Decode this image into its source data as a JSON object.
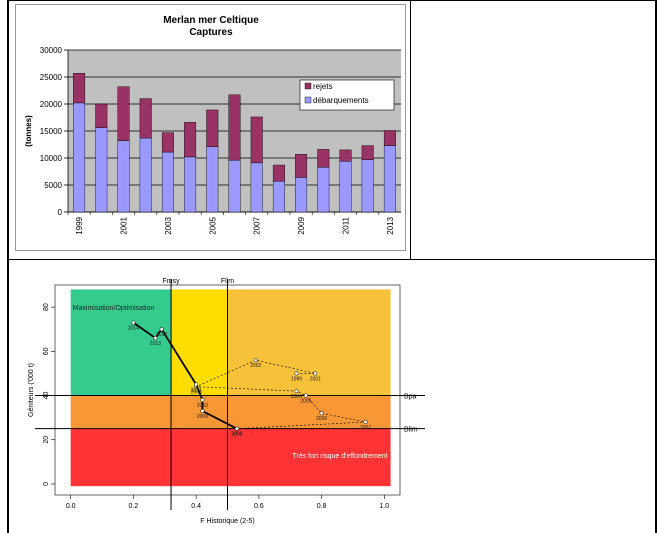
{
  "chart_data": [
    {
      "type": "bar",
      "stacked": true,
      "title": "Merlan mer Celtique",
      "subtitle": "Captures",
      "ylabel": "(tonnes)",
      "xlabel": "",
      "ylim": [
        0,
        30000
      ],
      "yticks": [
        0,
        5000,
        10000,
        15000,
        20000,
        25000,
        30000
      ],
      "grid": true,
      "legend_position": "right",
      "categories": [
        "1999",
        "2000",
        "2001",
        "2002",
        "2003",
        "2004",
        "2005",
        "2006",
        "2007",
        "2008",
        "2009",
        "2010",
        "2011",
        "2012",
        "2013"
      ],
      "tick_labels": [
        "1999",
        "",
        "2001",
        "",
        "2003",
        "",
        "2005",
        "",
        "2007",
        "",
        "2009",
        "",
        "2011",
        "",
        "2013"
      ],
      "series": [
        {
          "name": "débarquements",
          "color": "#9999ff",
          "values": [
            20200,
            15600,
            13200,
            13700,
            11100,
            10200,
            12100,
            9600,
            9100,
            5700,
            6400,
            8300,
            9400,
            9700,
            12300
          ]
        },
        {
          "name": "rejets",
          "color": "#993366",
          "values": [
            5500,
            4400,
            10000,
            7300,
            3600,
            6400,
            6800,
            12100,
            8500,
            3000,
            4300,
            3300,
            2100,
            2600,
            2800
          ]
        }
      ]
    },
    {
      "type": "scatter",
      "xlabel": "F Historique (2-5)",
      "ylabel": "Géniteurs ('000 t)",
      "xlim": [
        -0.05,
        1.05
      ],
      "ylim": [
        -5,
        90
      ],
      "xticks": [
        0.0,
        0.2,
        0.4,
        0.6,
        0.8,
        1.0
      ],
      "xtick_labels": [
        "0.0",
        "0.2",
        "0.4",
        "0.6",
        "0.8",
        "1.0"
      ],
      "yticks": [
        0,
        20,
        40,
        60,
        80
      ],
      "zones": [
        {
          "label": "Maximisation/Optimisation",
          "color": "#33cc8c"
        },
        {
          "label": "",
          "color": "#ffdd00"
        },
        {
          "label": "",
          "color": "#f8c13a"
        },
        {
          "label": "",
          "color": "#f99636"
        },
        {
          "label": "Très fort risque d'effondrement",
          "color": "#ff3333"
        }
      ],
      "reference_lines": {
        "Fmsy": 0.32,
        "Flim": 0.5,
        "Bpa": 40,
        "Blim": 25
      },
      "ref_labels": {
        "fmsy": "Fmsy",
        "flim": "Flim",
        "bpa": "Bpa",
        "blim": "Blim"
      },
      "series": [
        {
          "name": "",
          "style": "dashed",
          "points": [
            {
              "year": "1999",
              "x": 0.72,
              "y": 50
            },
            {
              "year": "2001",
              "x": 0.78,
              "y": 50
            },
            {
              "year": "2002",
              "x": 0.59,
              "y": 56
            },
            {
              "year": "2003",
              "x": 0.4,
              "y": 44
            },
            {
              "year": "2004",
              "x": 0.72,
              "y": 42
            },
            {
              "year": "2005",
              "x": 0.75,
              "y": 40
            },
            {
              "year": "2006",
              "x": 0.8,
              "y": 32
            },
            {
              "year": "2007",
              "x": 0.94,
              "y": 28
            },
            {
              "year": "2008",
              "x": 0.53,
              "y": 25
            }
          ]
        },
        {
          "name": "",
          "style": "solid",
          "points": [
            {
              "year": "2008",
              "x": 0.53,
              "y": 25
            },
            {
              "year": "2009",
              "x": 0.42,
              "y": 33
            },
            {
              "year": "2010",
              "x": 0.42,
              "y": 38
            },
            {
              "year": "2011",
              "x": 0.4,
              "y": 45
            },
            {
              "year": "2012",
              "x": 0.29,
              "y": 70
            },
            {
              "year": "2013",
              "x": 0.27,
              "y": 66
            },
            {
              "year": "2014",
              "x": 0.2,
              "y": 73
            }
          ]
        }
      ]
    }
  ]
}
